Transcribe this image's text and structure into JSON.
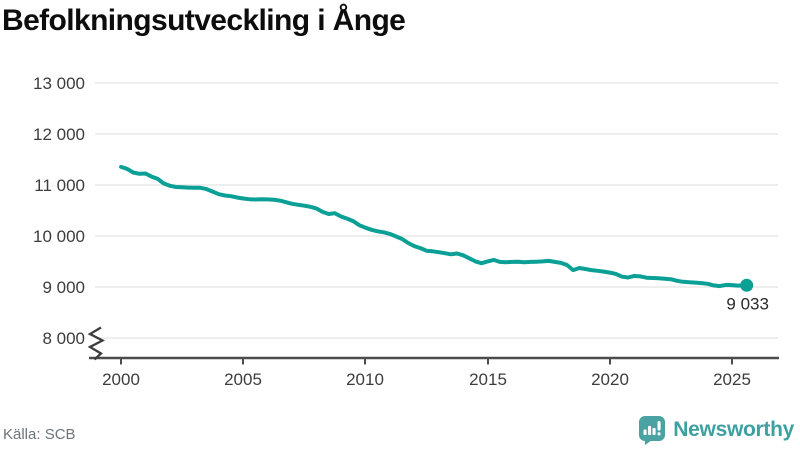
{
  "title": "Befolkningsutveckling i Ånge",
  "source": "Källa: SCB",
  "branding": {
    "name": "Newsworthy",
    "icon": "newsworthy-bubble-chart-icon"
  },
  "colors": {
    "line": "#0aa096",
    "grid": "#e8e8e8",
    "axis": "#4c4c4c",
    "title": "#0d0d0d",
    "tick_label": "#3d3d3d",
    "source_text": "#6e747b",
    "logo": "#4ba2a2",
    "logo_text": "#3fa0a1"
  },
  "chart_data": {
    "type": "line",
    "title": "Befolkningsutveckling i Ånge",
    "xlabel": "",
    "ylabel": "",
    "grid": "horizontal",
    "legend": "none",
    "y_axis_break": true,
    "xlim": [
      1998.7,
      2027.8
    ],
    "ylim": [
      8000,
      13000
    ],
    "x_ticks": [
      2000,
      2005,
      2010,
      2015,
      2020,
      2025
    ],
    "x_tick_labels": [
      "2000",
      "2005",
      "2010",
      "2015",
      "2020",
      "2025"
    ],
    "y_ticks": [
      13000,
      12000,
      11000,
      10000,
      9000,
      8000
    ],
    "y_tick_labels": [
      "13 000",
      "12 000",
      "11 000",
      "10 000",
      "9 000",
      "8 000"
    ],
    "end_point": {
      "x": 2025.6,
      "y": 9033,
      "label": "9 033"
    },
    "series": [
      {
        "points": [
          [
            2000.0,
            11355
          ],
          [
            2000.25,
            11315
          ],
          [
            2000.5,
            11245
          ],
          [
            2000.75,
            11220
          ],
          [
            2001.0,
            11225
          ],
          [
            2001.25,
            11165
          ],
          [
            2001.5,
            11120
          ],
          [
            2001.75,
            11030
          ],
          [
            2002.0,
            10985
          ],
          [
            2002.25,
            10960
          ],
          [
            2002.5,
            10955
          ],
          [
            2002.75,
            10950
          ],
          [
            2003.0,
            10945
          ],
          [
            2003.25,
            10945
          ],
          [
            2003.5,
            10920
          ],
          [
            2003.75,
            10870
          ],
          [
            2004.0,
            10820
          ],
          [
            2004.25,
            10795
          ],
          [
            2004.5,
            10780
          ],
          [
            2004.75,
            10755
          ],
          [
            2005.0,
            10735
          ],
          [
            2005.25,
            10722
          ],
          [
            2005.5,
            10716
          ],
          [
            2005.75,
            10722
          ],
          [
            2006.0,
            10718
          ],
          [
            2006.25,
            10712
          ],
          [
            2006.5,
            10694
          ],
          [
            2006.75,
            10662
          ],
          [
            2007.0,
            10632
          ],
          [
            2007.25,
            10612
          ],
          [
            2007.5,
            10595
          ],
          [
            2007.75,
            10572
          ],
          [
            2008.0,
            10540
          ],
          [
            2008.25,
            10472
          ],
          [
            2008.5,
            10432
          ],
          [
            2008.75,
            10447
          ],
          [
            2009.0,
            10382
          ],
          [
            2009.25,
            10342
          ],
          [
            2009.5,
            10292
          ],
          [
            2009.75,
            10212
          ],
          [
            2010.0,
            10162
          ],
          [
            2010.25,
            10122
          ],
          [
            2010.5,
            10092
          ],
          [
            2010.75,
            10072
          ],
          [
            2011.0,
            10042
          ],
          [
            2011.25,
            9992
          ],
          [
            2011.5,
            9942
          ],
          [
            2011.75,
            9862
          ],
          [
            2012.0,
            9802
          ],
          [
            2012.25,
            9762
          ],
          [
            2012.5,
            9712
          ],
          [
            2012.75,
            9700
          ],
          [
            2013.0,
            9682
          ],
          [
            2013.25,
            9662
          ],
          [
            2013.5,
            9642
          ],
          [
            2013.75,
            9657
          ],
          [
            2014.0,
            9622
          ],
          [
            2014.25,
            9562
          ],
          [
            2014.5,
            9502
          ],
          [
            2014.75,
            9467
          ],
          [
            2015.0,
            9502
          ],
          [
            2015.25,
            9532
          ],
          [
            2015.5,
            9492
          ],
          [
            2015.75,
            9487
          ],
          [
            2016.0,
            9492
          ],
          [
            2016.25,
            9497
          ],
          [
            2016.5,
            9487
          ],
          [
            2016.75,
            9492
          ],
          [
            2017.0,
            9497
          ],
          [
            2017.25,
            9502
          ],
          [
            2017.5,
            9512
          ],
          [
            2017.75,
            9492
          ],
          [
            2018.0,
            9472
          ],
          [
            2018.25,
            9432
          ],
          [
            2018.5,
            9332
          ],
          [
            2018.75,
            9372
          ],
          [
            2019.0,
            9352
          ],
          [
            2019.25,
            9332
          ],
          [
            2019.5,
            9317
          ],
          [
            2019.75,
            9302
          ],
          [
            2020.0,
            9282
          ],
          [
            2020.25,
            9257
          ],
          [
            2020.5,
            9202
          ],
          [
            2020.75,
            9187
          ],
          [
            2021.0,
            9217
          ],
          [
            2021.25,
            9207
          ],
          [
            2021.5,
            9182
          ],
          [
            2021.75,
            9177
          ],
          [
            2022.0,
            9172
          ],
          [
            2022.25,
            9162
          ],
          [
            2022.5,
            9152
          ],
          [
            2022.75,
            9122
          ],
          [
            2023.0,
            9102
          ],
          [
            2023.25,
            9092
          ],
          [
            2023.5,
            9087
          ],
          [
            2023.75,
            9077
          ],
          [
            2024.0,
            9062
          ],
          [
            2024.25,
            9032
          ],
          [
            2024.5,
            9018
          ],
          [
            2024.75,
            9042
          ],
          [
            2025.0,
            9038
          ],
          [
            2025.25,
            9028
          ],
          [
            2025.6,
            9033
          ]
        ]
      }
    ]
  }
}
